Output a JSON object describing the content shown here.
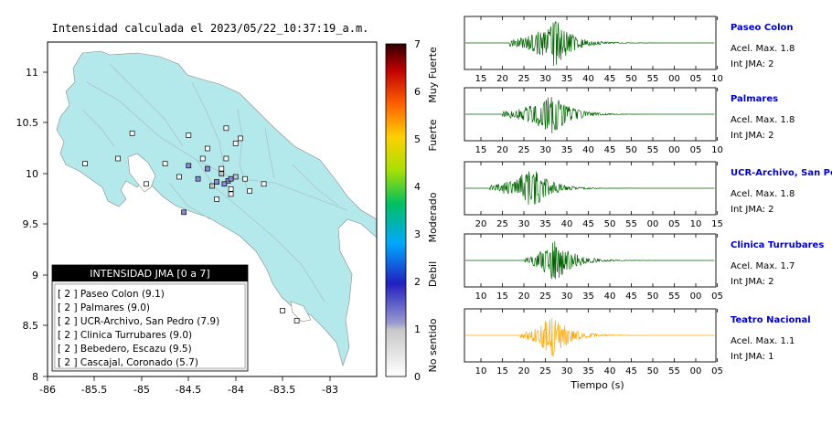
{
  "colors": {
    "land": "#b4e9ec",
    "station_fill": "#d8d8d8",
    "trace_green": "#006400",
    "trace_orange": "#ffa500",
    "station_name": "#0000cc",
    "legend_header": "#000000"
  },
  "map": {
    "title": "Intensidad calculada el 2023/05/22_10:37:19_a.m.",
    "x_ticks": [
      "-86",
      "-85.5",
      "-85",
      "-84.5",
      "-84",
      "-83.5",
      "-83"
    ],
    "y_ticks": [
      "8",
      "8.5",
      "9",
      "9.5",
      "10",
      "10.5",
      "11"
    ],
    "xlim": [
      -86,
      -82.5
    ],
    "ylim": [
      8,
      11.3
    ],
    "legend_title": "INTENSIDAD JMA [0 a 7]",
    "legend_items": [
      "[ 2 ]  Paseo Colon (9.1)",
      "[ 2 ]  Palmares (9.0)",
      "[ 2 ]  UCR-Archivo, San Pedro (7.9)",
      "[ 2 ]  Clinica Turrubares (9.0)",
      "[ 2 ]  Bebedero, Escazu (9.5)",
      "[ 2 ]  Cascajal, Coronado (5.7)"
    ],
    "stations": [
      {
        "lon": -84.08,
        "lat": 9.93,
        "level": 2
      },
      {
        "lon": -84.12,
        "lat": 9.9,
        "level": 2
      },
      {
        "lon": -84.05,
        "lat": 9.95,
        "level": 2
      },
      {
        "lon": -84.2,
        "lat": 9.92,
        "level": 2
      },
      {
        "lon": -84.0,
        "lat": 9.97,
        "level": 1
      },
      {
        "lon": -84.15,
        "lat": 10.0,
        "level": 1
      },
      {
        "lon": -84.3,
        "lat": 10.05,
        "level": 2
      },
      {
        "lon": -84.4,
        "lat": 9.95,
        "level": 2
      },
      {
        "lon": -84.5,
        "lat": 10.08,
        "level": 2
      },
      {
        "lon": -84.55,
        "lat": 9.62,
        "level": 2
      },
      {
        "lon": -84.25,
        "lat": 9.88,
        "level": 1
      },
      {
        "lon": -84.1,
        "lat": 10.15,
        "level": 0
      },
      {
        "lon": -84.3,
        "lat": 10.25,
        "level": 0
      },
      {
        "lon": -84.0,
        "lat": 10.3,
        "level": 0
      },
      {
        "lon": -84.1,
        "lat": 10.45,
        "level": 0
      },
      {
        "lon": -84.5,
        "lat": 10.38,
        "level": 0
      },
      {
        "lon": -83.95,
        "lat": 10.35,
        "level": 0
      },
      {
        "lon": -84.35,
        "lat": 10.15,
        "level": 0
      },
      {
        "lon": -83.9,
        "lat": 9.95,
        "level": 0
      },
      {
        "lon": -83.85,
        "lat": 9.83,
        "level": 0
      },
      {
        "lon": -84.2,
        "lat": 9.75,
        "level": 0
      },
      {
        "lon": -84.05,
        "lat": 9.8,
        "level": 0
      },
      {
        "lon": -84.6,
        "lat": 9.97,
        "level": 0
      },
      {
        "lon": -84.75,
        "lat": 10.1,
        "level": 0
      },
      {
        "lon": -85.1,
        "lat": 10.4,
        "level": 0
      },
      {
        "lon": -85.25,
        "lat": 10.15,
        "level": 0
      },
      {
        "lon": -85.6,
        "lat": 10.1,
        "level": 0
      },
      {
        "lon": -84.95,
        "lat": 9.9,
        "level": 0
      },
      {
        "lon": -84.15,
        "lat": 10.05,
        "level": 0
      },
      {
        "lon": -83.7,
        "lat": 9.9,
        "level": 0
      },
      {
        "lon": -83.5,
        "lat": 8.65,
        "level": 0
      },
      {
        "lon": -83.35,
        "lat": 8.55,
        "level": 0
      },
      {
        "lon": -84.05,
        "lat": 9.85,
        "level": 0
      }
    ]
  },
  "colorbar": {
    "ticks": [
      "0",
      "1",
      "2",
      "3",
      "4",
      "5",
      "6",
      "7"
    ],
    "labels": [
      "No sentido",
      "Debil",
      "Moderado",
      "Fuerte",
      "Muy Fuerte"
    ]
  },
  "chart_data": [
    {
      "type": "line",
      "station": "Paseo Colon",
      "accel": "Acel. Max. 1.8",
      "intensity": "Int JMA: 2",
      "x_ticks": [
        "15",
        "20",
        "25",
        "30",
        "35",
        "40",
        "45",
        "50",
        "55",
        "00",
        "05",
        "10"
      ],
      "trace_color": "#006400",
      "onset": 0.18,
      "peak": 0.36,
      "amplitude": 1.0
    },
    {
      "type": "line",
      "station": "Palmares",
      "accel": "Acel. Max. 1.8",
      "intensity": "Int JMA: 2",
      "x_ticks": [
        "15",
        "20",
        "25",
        "30",
        "35",
        "40",
        "45",
        "50",
        "55",
        "00",
        "05",
        "10"
      ],
      "trace_color": "#006400",
      "onset": 0.15,
      "peak": 0.35,
      "amplitude": 0.9
    },
    {
      "type": "line",
      "station": "UCR-Archivo, San Pedro",
      "accel": "Acel. Max. 1.8",
      "intensity": "Int JMA: 2",
      "x_ticks": [
        "20",
        "25",
        "30",
        "35",
        "40",
        "45",
        "50",
        "55",
        "00",
        "05",
        "10",
        "15"
      ],
      "trace_color": "#006400",
      "onset": 0.1,
      "peak": 0.27,
      "amplitude": 0.9
    },
    {
      "type": "line",
      "station": "Clinica Turrubares",
      "accel": "Acel. Max. 1.7",
      "intensity": "Int JMA: 2",
      "x_ticks": [
        "10",
        "15",
        "20",
        "25",
        "30",
        "35",
        "40",
        "45",
        "50",
        "55",
        "00",
        "05"
      ],
      "trace_color": "#006400",
      "onset": 0.24,
      "peak": 0.36,
      "amplitude": 0.95
    },
    {
      "type": "line",
      "station": "Teatro Nacional",
      "accel": "Acel. Max. 1.1",
      "intensity": "Int JMA: 1",
      "x_ticks": [
        "10",
        "15",
        "20",
        "25",
        "30",
        "35",
        "40",
        "45",
        "50",
        "55",
        "00",
        "05"
      ],
      "trace_color": "#ffa500",
      "onset": 0.22,
      "peak": 0.35,
      "amplitude": 0.9,
      "xlabel": "Tiempo (s)"
    }
  ]
}
